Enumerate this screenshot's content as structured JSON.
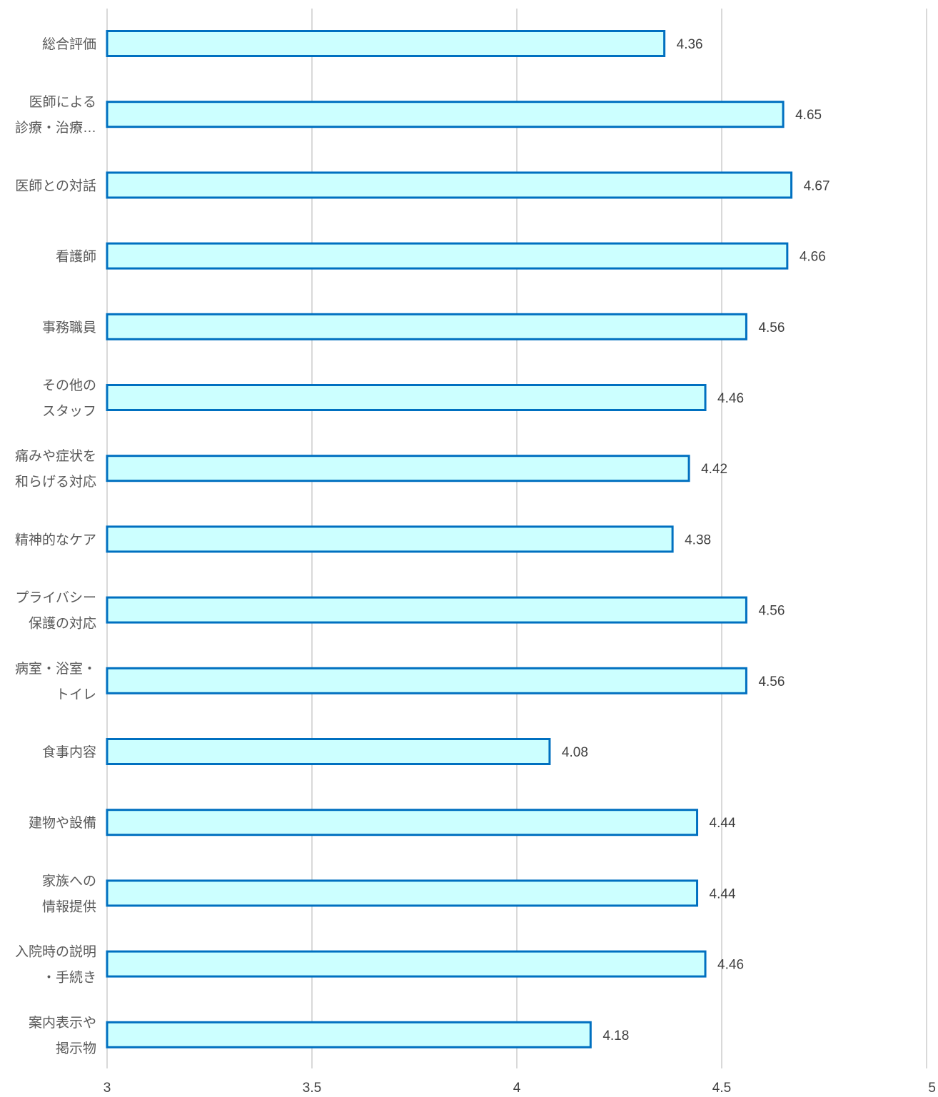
{
  "chart_data": {
    "type": "bar",
    "orientation": "horizontal",
    "categories": [
      [
        "総合評価"
      ],
      [
        "医師による",
        "診療・治療…"
      ],
      [
        "医師との対話"
      ],
      [
        "看護師"
      ],
      [
        "事務職員"
      ],
      [
        "その他の",
        "スタッフ"
      ],
      [
        "痛みや症状を",
        "和らげる対応"
      ],
      [
        "精神的なケア"
      ],
      [
        "プライバシー",
        "保護の対応"
      ],
      [
        "病室・浴室・",
        "トイレ"
      ],
      [
        "食事内容"
      ],
      [
        "建物や設備"
      ],
      [
        "家族への",
        "情報提供"
      ],
      [
        "入院時の説明",
        "・手続き"
      ],
      [
        "案内表示や",
        "掲示物"
      ]
    ],
    "values": [
      4.36,
      4.65,
      4.67,
      4.66,
      4.56,
      4.46,
      4.42,
      4.38,
      4.56,
      4.56,
      4.08,
      4.44,
      4.44,
      4.46,
      4.18
    ],
    "value_labels": [
      "4.36",
      "4.65",
      "4.67",
      "4.66",
      "4.56",
      "4.46",
      "4.42",
      "4.38",
      "4.56",
      "4.56",
      "4.08",
      "4.44",
      "4.44",
      "4.46",
      "4.18"
    ],
    "xlim": [
      3,
      5
    ],
    "x_ticks": [
      "3",
      "3.5",
      "4",
      "4.5",
      "5"
    ],
    "grid": true,
    "legend": false,
    "bar_fill": "#ccffff",
    "bar_stroke": "#0070c0",
    "grid_color": "#d9d9d9"
  }
}
